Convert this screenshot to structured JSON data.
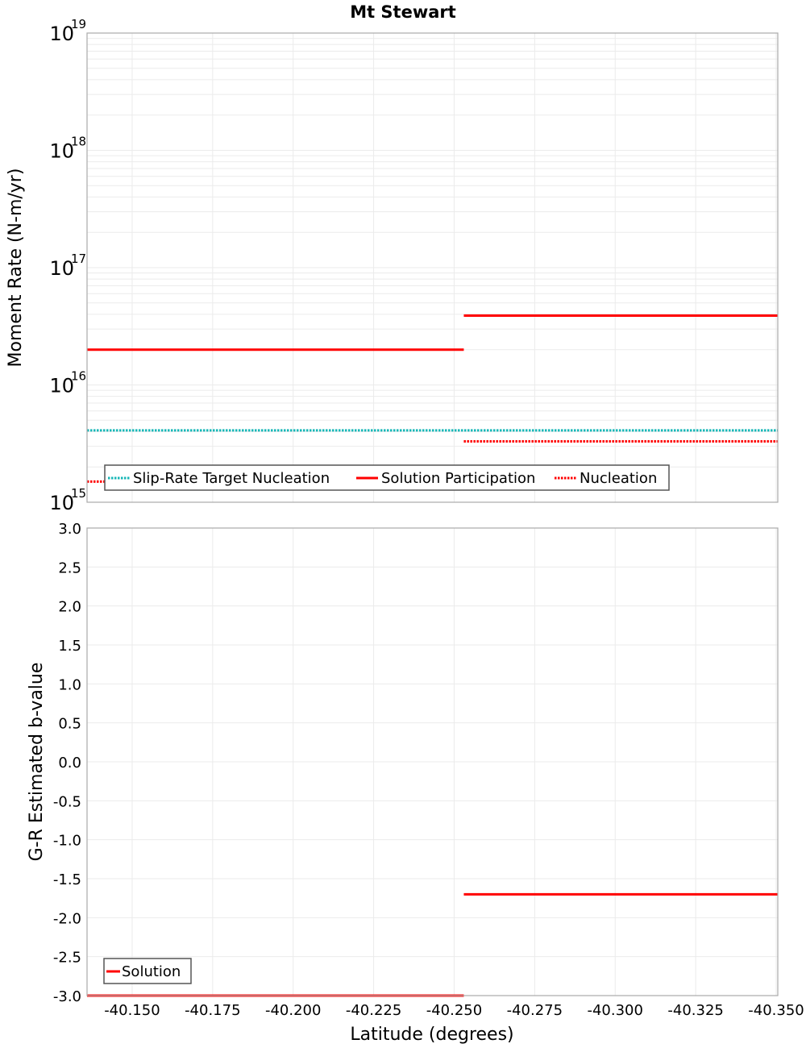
{
  "chart_data": [
    {
      "type": "line",
      "title": "Mt Stewart",
      "xlabel": "",
      "ylabel": "Moment Rate (N-m/yr)",
      "yscale": "log",
      "ylim": [
        1000000000000000.0,
        1e+19
      ],
      "xlim": [
        -40.136,
        -40.3505
      ],
      "x_reversed": true,
      "grid": true,
      "legend_position": "lower-left",
      "y_ticks": [
        {
          "base": "10",
          "exp": "15"
        },
        {
          "base": "10",
          "exp": "16"
        },
        {
          "base": "10",
          "exp": "17"
        },
        {
          "base": "10",
          "exp": "18"
        },
        {
          "base": "10",
          "exp": "19"
        }
      ],
      "series": [
        {
          "name": "Slip-Rate Target Nucleation",
          "color": "#17b7b7",
          "style": "dotted",
          "segments": [
            {
              "x0": -40.136,
              "x1": -40.3505,
              "value": 4100000000000000.0
            }
          ]
        },
        {
          "name": "Solution Participation",
          "color": "#ff0000",
          "style": "solid",
          "segments": [
            {
              "x0": -40.136,
              "x1": -40.253,
              "value": 2e+16
            },
            {
              "x0": -40.253,
              "x1": -40.3505,
              "value": 3.9e+16
            }
          ]
        },
        {
          "name": "Nucleation",
          "color": "#ff0000",
          "style": "dotted",
          "segments": [
            {
              "x0": -40.136,
              "x1": -40.253,
              "value": 1500000000000000.0
            },
            {
              "x0": -40.253,
              "x1": -40.3505,
              "value": 3300000000000000.0
            }
          ]
        }
      ]
    },
    {
      "type": "line",
      "title": "",
      "xlabel": "Latitude (degrees)",
      "ylabel": "G-R Estimated b-value",
      "ylim": [
        -3.0,
        3.0
      ],
      "xlim": [
        -40.136,
        -40.3505
      ],
      "x_reversed": true,
      "grid": true,
      "legend_position": "lower-left",
      "y_ticks": [
        "3.0",
        "2.5",
        "2.0",
        "1.5",
        "1.0",
        "0.5",
        "0.0",
        "-0.5",
        "-1.0",
        "-1.5",
        "-2.0",
        "-2.5",
        "-3.0"
      ],
      "x_ticks": [
        "-40.150",
        "-40.175",
        "-40.200",
        "-40.225",
        "-40.250",
        "-40.275",
        "-40.300",
        "-40.325",
        "-40.350"
      ],
      "series": [
        {
          "name": "Solution",
          "color": "#ff0000",
          "style": "solid",
          "segments": [
            {
              "x0": -40.136,
              "x1": -40.253,
              "value": -3.0
            },
            {
              "x0": -40.253,
              "x1": -40.3505,
              "value": -1.7
            }
          ]
        }
      ]
    }
  ],
  "labels": {
    "title": "Mt Stewart",
    "top_ylabel": "Moment Rate (N-m/yr)",
    "bottom_ylabel": "G-R Estimated b-value",
    "xlabel": "Latitude (degrees)",
    "top_legend": [
      "Slip-Rate Target Nucleation",
      "Solution Participation",
      "Nucleation"
    ],
    "bottom_legend": [
      "Solution"
    ]
  }
}
